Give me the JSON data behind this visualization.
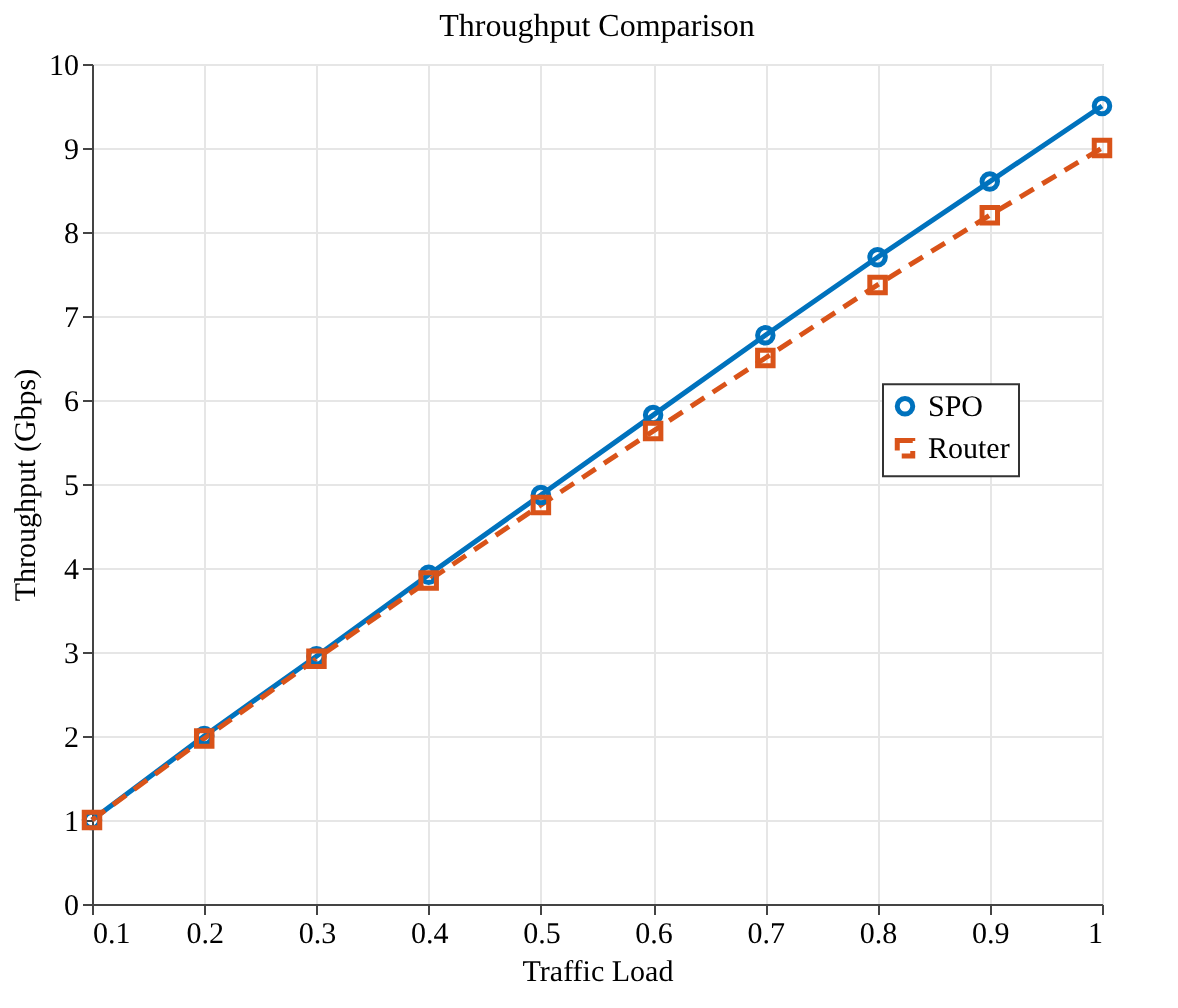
{
  "chart_data": {
    "type": "line",
    "title": "Throughput Comparison",
    "xlabel": "Traffic Load",
    "ylabel": "Throughput (Gbps)",
    "x": [
      0.1,
      0.2,
      0.3,
      0.4,
      0.5,
      0.6,
      0.7,
      0.8,
      0.9,
      1
    ],
    "series": [
      {
        "name": "SPO",
        "color": "#0072bd",
        "marker": "circle",
        "line_style": "solid",
        "values": [
          1,
          2,
          2.95,
          3.92,
          4.87,
          5.82,
          6.77,
          7.7,
          8.6,
          9.5
        ]
      },
      {
        "name": "Router",
        "color": "#d95319",
        "marker": "square",
        "line_style": "dashed",
        "values": [
          1,
          1.97,
          2.92,
          3.85,
          4.75,
          5.63,
          6.5,
          7.37,
          8.2,
          9.0
        ]
      }
    ],
    "xlim": [
      0.1,
      1
    ],
    "xticks": [
      0.1,
      0.2,
      0.3,
      0.4,
      0.5,
      0.6,
      0.7,
      0.8,
      0.9,
      1
    ],
    "ylim": [
      0,
      10
    ],
    "yticks": [
      0,
      1,
      2,
      3,
      4,
      5,
      6,
      7,
      8,
      9,
      10
    ],
    "grid": true,
    "legend": "right"
  }
}
